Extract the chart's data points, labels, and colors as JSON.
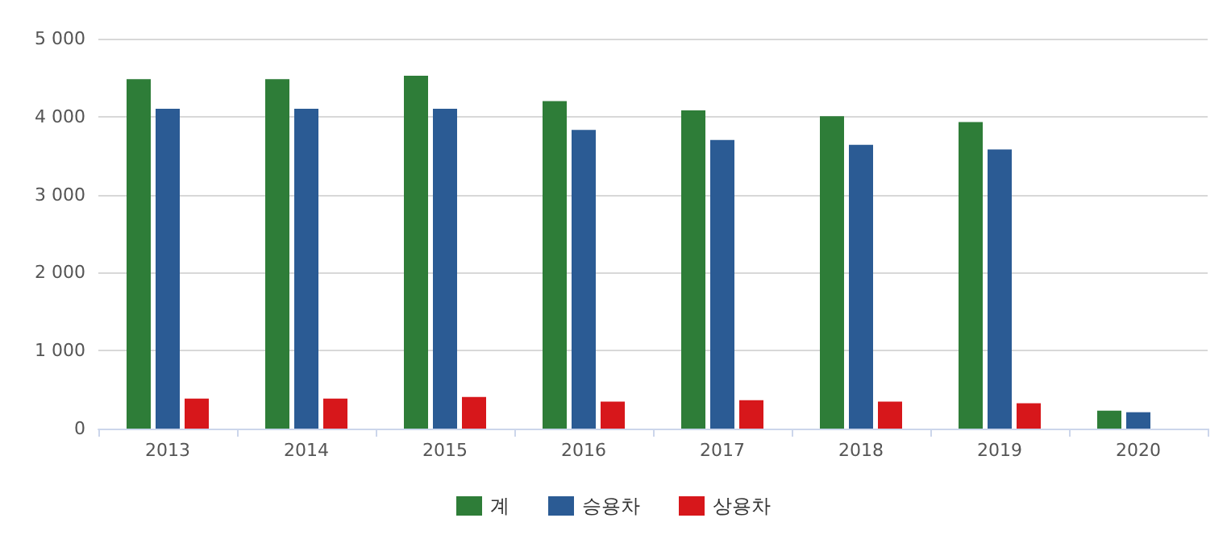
{
  "chart_data": {
    "type": "bar",
    "categories": [
      "2013",
      "2014",
      "2015",
      "2016",
      "2017",
      "2018",
      "2019",
      "2020"
    ],
    "series": [
      {
        "name": "계",
        "color": "#2e7d38",
        "values": [
          4480,
          4480,
          4525,
          4200,
          4080,
          4005,
          3930,
          230
        ]
      },
      {
        "name": "승용차",
        "color": "#2b5b94",
        "values": [
          4100,
          4100,
          4100,
          3830,
          3700,
          3640,
          3580,
          210
        ]
      },
      {
        "name": "상용차",
        "color": "#d7171b",
        "values": [
          385,
          385,
          405,
          345,
          365,
          345,
          325,
          null
        ]
      }
    ],
    "ylim": [
      0,
      5000
    ],
    "yticks": [
      {
        "value": 0,
        "label": "0"
      },
      {
        "value": 1000,
        "label": "1 000"
      },
      {
        "value": 2000,
        "label": "2 000"
      },
      {
        "value": 3000,
        "label": "3 000"
      },
      {
        "value": 4000,
        "label": "4 000"
      },
      {
        "value": 5000,
        "label": "5 000"
      }
    ],
    "grid": "y",
    "legend": "bottom"
  }
}
